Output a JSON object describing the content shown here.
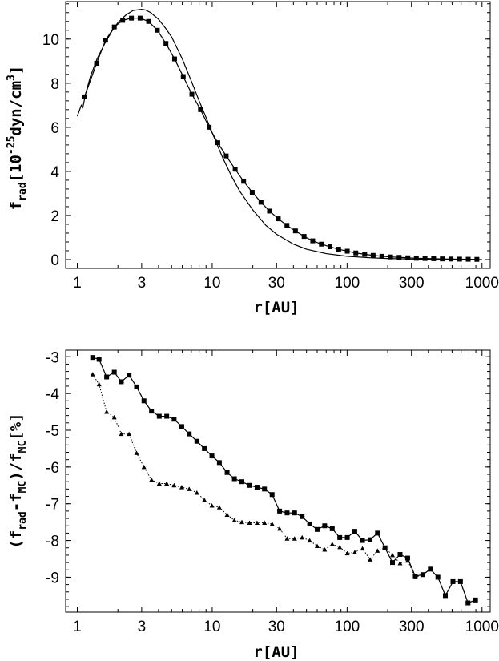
{
  "chart_data": [
    {
      "type": "line",
      "xscale": "log",
      "xlim": [
        0.82,
        1150
      ],
      "ylim": [
        -0.4,
        11.7
      ],
      "xticks": [
        1,
        3,
        10,
        30,
        100,
        300,
        1000
      ],
      "xtick_labels": [
        "1",
        "3",
        "10",
        "30",
        "100",
        "300",
        "1000"
      ],
      "yticks": [
        0,
        2,
        4,
        6,
        8,
        10
      ],
      "ytick_labels": [
        "0",
        "2",
        "4",
        "6",
        "8",
        "10"
      ],
      "xlabel": "r[AU]",
      "ylabel": "f_rad[10^-25 dyn/cm^3]",
      "grid": false,
      "series": [
        {
          "style": "solid-line",
          "x": [
            1.0,
            1.07,
            1.1,
            1.15,
            1.25,
            1.4,
            1.6,
            1.8,
            2.0,
            2.3,
            2.6,
            3.0,
            3.2,
            3.5,
            4.0,
            4.5,
            5.0,
            6.0,
            7.0,
            8.0,
            9.0,
            10,
            12,
            14,
            16,
            20,
            25,
            30,
            40,
            50,
            70,
            100,
            150,
            200,
            300,
            500,
            700,
            1000
          ],
          "y": [
            6.5,
            7.0,
            6.9,
            7.5,
            8.3,
            9.1,
            9.8,
            10.35,
            10.75,
            11.1,
            11.3,
            11.35,
            11.32,
            11.2,
            10.9,
            10.5,
            10.1,
            9.1,
            8.1,
            7.2,
            6.45,
            5.75,
            4.6,
            3.75,
            3.1,
            2.25,
            1.55,
            1.15,
            0.7,
            0.47,
            0.27,
            0.15,
            0.08,
            0.05,
            0.025,
            0.01,
            0.005,
            0.0
          ]
        },
        {
          "style": "line-square-markers",
          "x": [
            1.13,
            1.39,
            1.62,
            1.88,
            2.17,
            2.52,
            2.92,
            3.38,
            3.92,
            4.54,
            5.26,
            6.1,
            7.07,
            8.19,
            9.49,
            11.0,
            12.7,
            14.8,
            17.1,
            19.8,
            23.0,
            26.6,
            30.9,
            35.8,
            41.4,
            48.0,
            55.6,
            64.5,
            74.7,
            86.6,
            100.3,
            116,
            135,
            156,
            181,
            210,
            243,
            282,
            326,
            378,
            438,
            508,
            589,
            682,
            790,
            916
          ],
          "y": [
            7.38,
            8.9,
            9.95,
            10.55,
            10.85,
            10.95,
            10.95,
            10.8,
            10.4,
            9.8,
            9.1,
            8.3,
            7.5,
            6.8,
            6.0,
            5.3,
            4.7,
            4.1,
            3.55,
            3.05,
            2.6,
            2.2,
            1.85,
            1.55,
            1.3,
            1.05,
            0.85,
            0.7,
            0.58,
            0.47,
            0.38,
            0.3,
            0.24,
            0.19,
            0.15,
            0.12,
            0.1,
            0.08,
            0.06,
            0.05,
            0.04,
            0.03,
            0.025,
            0.02,
            0.015,
            0.01
          ]
        }
      ]
    },
    {
      "type": "line",
      "xscale": "log",
      "xlim": [
        0.82,
        1150
      ],
      "ylim": [
        -9.95,
        -2.82
      ],
      "xticks": [
        1,
        3,
        10,
        30,
        100,
        300,
        1000
      ],
      "xtick_labels": [
        "1",
        "3",
        "10",
        "30",
        "100",
        "300",
        "1000"
      ],
      "yticks": [
        -3,
        -4,
        -5,
        -6,
        -7,
        -8,
        -9
      ],
      "ytick_labels": [
        "-3",
        "-4",
        "-5",
        "-6",
        "-7",
        "-8",
        "-9"
      ],
      "xlabel": "r[AU]",
      "ylabel": "(f_rad-f_MC)/f_MC[%]",
      "grid": false,
      "series": [
        {
          "style": "line-square-markers",
          "x": [
            1.3,
            1.45,
            1.65,
            1.88,
            2.12,
            2.42,
            2.75,
            3.12,
            3.55,
            4.05,
            4.6,
            5.22,
            5.95,
            6.75,
            7.7,
            8.75,
            9.95,
            11.3,
            12.9,
            14.6,
            16.6,
            18.9,
            21.5,
            24.4,
            27.8,
            31.6,
            35.9,
            40.8,
            46.4,
            52.8,
            60.0,
            68.2,
            77.6,
            88.2,
            100.3,
            114,
            130,
            148,
            168,
            191,
            217,
            247,
            281,
            320,
            364,
            414,
            471,
            535,
            609,
            692,
            787,
            895
          ],
          "y": [
            -3.02,
            -3.07,
            -3.55,
            -3.42,
            -3.68,
            -3.5,
            -3.82,
            -4.2,
            -4.48,
            -4.62,
            -4.62,
            -4.7,
            -4.9,
            -5.1,
            -5.3,
            -5.5,
            -5.7,
            -5.88,
            -6.15,
            -6.32,
            -6.4,
            -6.5,
            -6.55,
            -6.6,
            -6.75,
            -7.2,
            -7.25,
            -7.25,
            -7.35,
            -7.55,
            -7.7,
            -7.6,
            -7.68,
            -7.92,
            -7.92,
            -7.75,
            -8.0,
            -7.98,
            -7.8,
            -8.2,
            -8.6,
            -8.38,
            -8.48,
            -8.97,
            -8.93,
            -8.78,
            -9.0,
            -9.5,
            -9.12,
            -9.12,
            -9.7,
            -9.62
          ]
        },
        {
          "style": "dotted-triangle-markers",
          "x": [
            1.3,
            1.45,
            1.65,
            1.88,
            2.12,
            2.42,
            2.75,
            3.12,
            3.55,
            4.05,
            4.6,
            5.22,
            5.95,
            6.75,
            7.7,
            8.75,
            9.95,
            11.3,
            12.9,
            14.6,
            16.6,
            18.9,
            21.5,
            24.4,
            27.8,
            31.6,
            35.9,
            40.8,
            46.4,
            52.8,
            60.0,
            68.2,
            77.6,
            88.2,
            100.3,
            114,
            130,
            148,
            168,
            191,
            217,
            247,
            281,
            320,
            364,
            414,
            471,
            535,
            609,
            692,
            787,
            895
          ],
          "y": [
            -3.48,
            -3.75,
            -4.5,
            -4.65,
            -5.1,
            -5.1,
            -5.62,
            -6.0,
            -6.35,
            -6.45,
            -6.45,
            -6.5,
            -6.55,
            -6.6,
            -6.7,
            -6.9,
            -7.05,
            -7.1,
            -7.3,
            -7.45,
            -7.5,
            -7.52,
            -7.52,
            -7.52,
            -7.55,
            -7.68,
            -7.95,
            -7.95,
            -7.92,
            -8.0,
            -8.15,
            -8.25,
            -8.1,
            -8.18,
            -8.35,
            -8.32,
            -8.22,
            -8.52,
            -8.28,
            -8.2,
            -8.4,
            -8.62,
            -8.55,
            -9.0,
            -8.93,
            -8.78,
            -9.0,
            -9.5,
            -9.12,
            -9.12,
            -9.7,
            -9.62
          ]
        }
      ]
    }
  ]
}
